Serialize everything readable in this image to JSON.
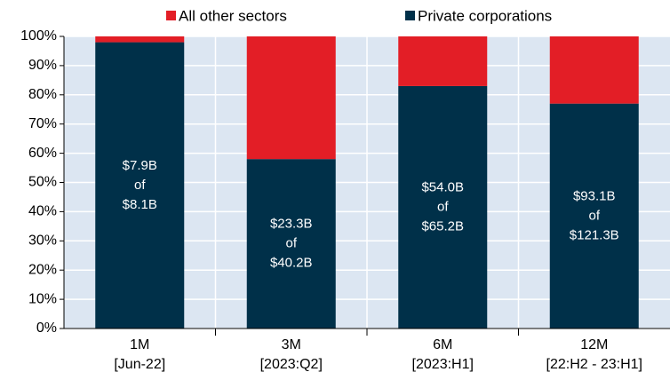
{
  "chart_data": {
    "type": "stacked_bar",
    "categories": [
      [
        "1M",
        "[Jun-22]"
      ],
      [
        "3M",
        "[2023:Q2]"
      ],
      [
        "6M",
        "[2023:H1]"
      ],
      [
        "12M",
        "[22:H2 - 23:H1]"
      ]
    ],
    "series": [
      {
        "name": "All other sectors",
        "color": "#e31e26",
        "values": [
          2,
          42,
          17,
          23
        ]
      },
      {
        "name": "Private corporations",
        "color": "#003049",
        "values": [
          98,
          58,
          83,
          77
        ]
      }
    ],
    "bar_labels": [
      [
        "$7.9B",
        "of",
        "$8.1B"
      ],
      [
        "$23.3B",
        "of",
        "$40.2B"
      ],
      [
        "$54.0B",
        "of",
        "$65.2B"
      ],
      [
        "$93.1B",
        "of",
        "$121.3B"
      ]
    ],
    "ylim": [
      0,
      100
    ],
    "yticks": [
      {
        "value": 0,
        "label": "0%"
      },
      {
        "value": 10,
        "label": "10%"
      },
      {
        "value": 20,
        "label": "20%"
      },
      {
        "value": 30,
        "label": "30%"
      },
      {
        "value": 40,
        "label": "40%"
      },
      {
        "value": 50,
        "label": "50%"
      },
      {
        "value": 60,
        "label": "60%"
      },
      {
        "value": 70,
        "label": "70%"
      },
      {
        "value": 80,
        "label": "80%"
      },
      {
        "value": 90,
        "label": "90%"
      },
      {
        "value": 100,
        "label": "100%"
      }
    ],
    "grid": true,
    "legend": "top"
  }
}
